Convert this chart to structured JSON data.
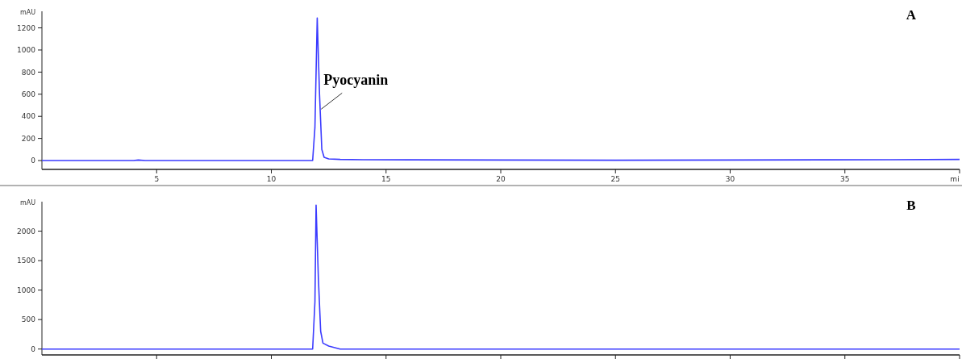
{
  "chart_data": [
    {
      "type": "line",
      "title": "A",
      "ylabel": "mAU",
      "x": [
        0,
        4,
        4.2,
        4.5,
        11.8,
        11.9,
        12.0,
        12.1,
        12.2,
        12.3,
        12.5,
        13,
        14,
        20,
        25,
        30,
        37,
        40
      ],
      "series": [
        {
          "color": "#3b3bff",
          "values": [
            0,
            0,
            5,
            0,
            0,
            300,
            1290,
            600,
            100,
            30,
            15,
            10,
            8,
            5,
            3,
            5,
            8,
            10
          ]
        }
      ],
      "xlim": [
        0,
        40
      ],
      "ylim": [
        -80,
        1350
      ],
      "xticks": [
        5,
        10,
        15,
        20,
        25,
        30,
        35,
        {
          "value": 40,
          "label": "mi"
        }
      ],
      "yticks": [
        0,
        200,
        400,
        600,
        800,
        1000,
        1200
      ],
      "annotations": [
        {
          "text": "Pyocyanin",
          "x": 12.1,
          "y": 450
        }
      ]
    },
    {
      "type": "line",
      "title": "B",
      "ylabel": "mAU",
      "x": [
        0,
        4,
        4.2,
        4.5,
        11.8,
        11.9,
        11.95,
        12.05,
        12.15,
        12.25,
        12.5,
        13,
        14,
        30,
        35,
        37,
        40
      ],
      "series": [
        {
          "color": "#3b3bff",
          "values": [
            0,
            0,
            0,
            0,
            0,
            800,
            2440,
            1200,
            300,
            100,
            50,
            0,
            0,
            0,
            0,
            0,
            0
          ]
        }
      ],
      "xlim": [
        0,
        40
      ],
      "ylim": [
        -100,
        2500
      ],
      "xticks": [
        5,
        10,
        15,
        20,
        25,
        30,
        35,
        {
          "value": 40,
          "label": null
        }
      ],
      "yticks": [
        0,
        500,
        1000,
        1500,
        2000
      ],
      "tick_labels": "y"
    }
  ]
}
